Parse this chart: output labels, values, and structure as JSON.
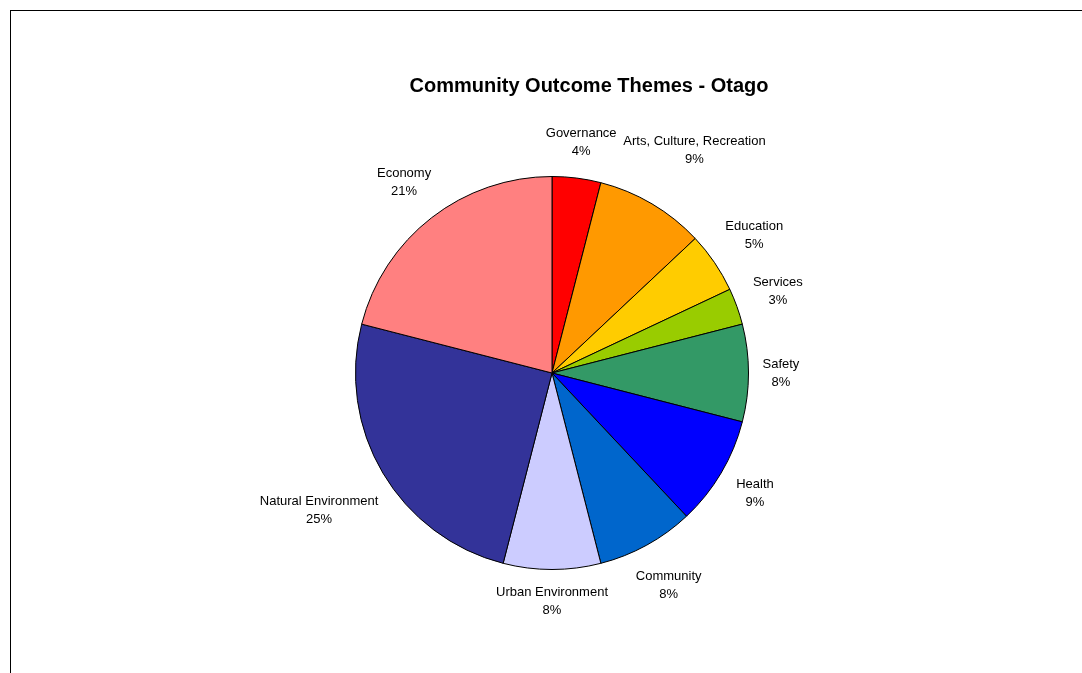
{
  "chart_data": {
    "type": "pie",
    "title": "Community Outcome Themes - Otago",
    "categories": [
      "Governance",
      "Arts, Culture, Recreation",
      "Education",
      "Services",
      "Safety",
      "Health",
      "Community",
      "Urban Environment",
      "Natural Environment",
      "Economy"
    ],
    "values": [
      4,
      9,
      5,
      3,
      8,
      9,
      8,
      8,
      25,
      21
    ],
    "value_labels": [
      "4%",
      "9%",
      "5%",
      "3%",
      "8%",
      "9%",
      "8%",
      "8%",
      "25%",
      "21%"
    ],
    "colors": [
      "#ff0000",
      "#ff9900",
      "#ffcc00",
      "#99cc00",
      "#339966",
      "#0000ff",
      "#0066cc",
      "#ccccff",
      "#333399",
      "#ff8080"
    ],
    "legend": false
  }
}
